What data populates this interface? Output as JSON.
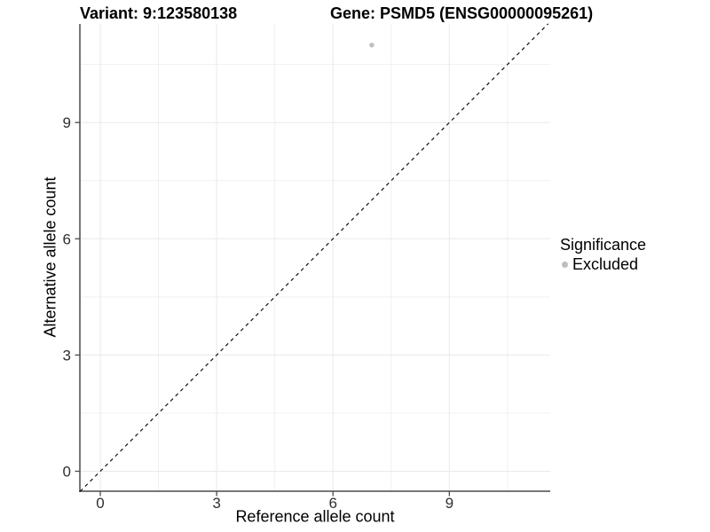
{
  "figure": {
    "title_left": "Variant: 9:123580138",
    "title_right": "Gene: PSMD5 (ENSG00000095261)"
  },
  "axes": {
    "x": {
      "label": "Reference allele count",
      "tick_labels": [
        "0",
        "3",
        "6",
        "9"
      ]
    },
    "y": {
      "label": "Alternative allele count",
      "tick_labels": [
        "0",
        "3",
        "6",
        "9"
      ]
    }
  },
  "legend": {
    "title": "Significance",
    "items": [
      {
        "label": "Excluded",
        "color": "#bebebe"
      }
    ]
  },
  "chart_data": {
    "type": "scatter",
    "title": "Variant: 9:123580138 | Gene: PSMD5 (ENSG00000095261)",
    "xlabel": "Reference allele count",
    "ylabel": "Alternative allele count",
    "x_ticks": [
      0,
      3,
      6,
      9
    ],
    "y_ticks": [
      0,
      3,
      6,
      9
    ],
    "x_minor_ticks": [
      1.5,
      4.5,
      7.5,
      10.5
    ],
    "y_minor_ticks": [
      1.5,
      4.5,
      7.5,
      10.5
    ],
    "xlim": [
      -0.53,
      11.6
    ],
    "ylim": [
      -0.52,
      11.55
    ],
    "grid": "major+minor",
    "legend_position": "right",
    "series": [
      {
        "name": "Excluded",
        "color": "#bebebe",
        "points": [
          [
            7,
            11
          ]
        ]
      }
    ],
    "reference_line": {
      "kind": "identity",
      "equation": "y = x",
      "style": "dashed",
      "color": "#111111"
    }
  },
  "colors": {
    "background": "#ffffff",
    "grid_major": "#e9e9e9",
    "grid_minor": "#f1f1f1",
    "axis_line": "#4a4a4a",
    "tick_mark": "#4a4a4a",
    "tick_label": "#303030",
    "text": "#000000",
    "point": "#bebebe"
  }
}
